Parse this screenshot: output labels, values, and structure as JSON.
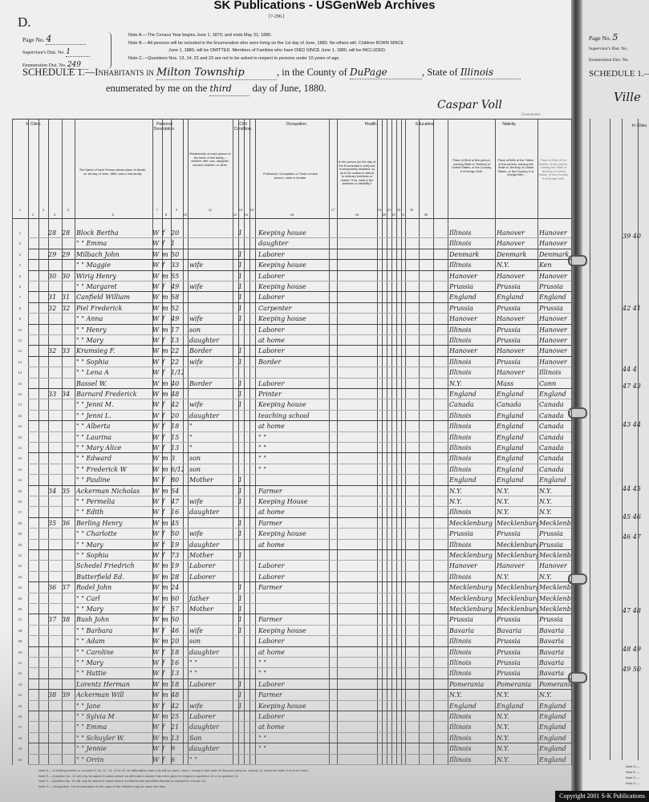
{
  "watermark": "SK Publications - USGenWeb Archives",
  "form_number": "[7-296.]",
  "section_letter": "D.",
  "header": {
    "page_label": "Page No.",
    "page_value": "4",
    "supervisor_label": "Supervisor's Dist. No.",
    "supervisor_value": "1",
    "enumeration_label": "Enumeration Dist. No.",
    "enumeration_value": "249",
    "note_a": "Note A.—The Census Year begins June 1, 1879, and ends May 31, 1880.",
    "note_b1": "Note B.—All persons will be included in the Enumeration who were living on the 1st day of June, 1880. No others will. Children BORN SINCE",
    "note_b2": "June 1, 1880, will be OMITTED. Members of Families who have DIED SINCE June 1, 1880, will be INCLUDED.",
    "note_c": "Note C.—Questions Nos. 13, 14, 22 and 23 are not to be asked in respect to persons under 10 years of age.",
    "schedule_prefix": "SCHEDULE 1.—Inhabitants in",
    "place": "Milton Township",
    "county_label": ", in the County of",
    "county": "DuPage",
    "state_label": ", State of",
    "state": "Illinois",
    "enumerated_label": "enumerated by me on the",
    "day": "third",
    "day_suffix": "day of June, 1880.",
    "enumerator": "Caspar Voll",
    "enumerator_label": "Enumerator."
  },
  "column_groups": {
    "in_cities": "In Cities.",
    "personal": "Personal Description.",
    "civil": "Civil Condition.",
    "occupation": "Occupation.",
    "health": "Health.",
    "education": "Education.",
    "nativity": "Nativity."
  },
  "column_descriptions": {
    "name": "The Name of each Person whose place of abode, on 1st day of June, 1880, was in this family.",
    "relationship": "Relationship of each person to the head of this family—whether wife, son, daughter, servant, boarder, or other.",
    "occupation": "Profession, Occupation or Trade of each person, male or female.",
    "health": "Is the person [on the day of the Enumerator's visit] sick or temporarily disabled, so as to be unable to attend to ordinary business or duties? If so, what is the sickness or disability?",
    "birthplace": "Place of Birth of this person, naming State or Territory of United States, or the Country, if of foreign birth.",
    "father_birthplace": "Place of Birth of the Father of this person, naming the State or Territory of United States, or the Country, if of foreign birth.",
    "mother_birthplace": "Place of Birth of the Mother of this person, naming the State or Territory of United States, or the Country, if of foreign birth."
  },
  "column_numbers": [
    "1",
    "2",
    "3",
    "4",
    "5",
    "6",
    "7",
    "8",
    "9",
    "10",
    "11",
    "12",
    "13",
    "14",
    "15",
    "16",
    "17",
    "18",
    "19",
    "20",
    "21",
    "22",
    "23",
    "24",
    "25",
    "26"
  ],
  "rows": [
    {
      "n": "1",
      "dw": "28",
      "fam": "28",
      "name": "Block Bertha",
      "color": "W",
      "sex": "f",
      "age": "20",
      "rel": "",
      "civ": "1",
      "occ": "Keeping house",
      "bp": "Illinois",
      "fbp": "Hanover",
      "mbp": "Hanover"
    },
    {
      "n": "2",
      "dw": "",
      "fam": "",
      "name": "\" \" Emma",
      "color": "W",
      "sex": "f",
      "age": "1",
      "rel": "",
      "civ": "",
      "occ": "daughter",
      "bp": "Illinois",
      "fbp": "Hanover",
      "mbp": "Hanover"
    },
    {
      "n": "3",
      "dw": "29",
      "fam": "29",
      "name": "Milbach John",
      "color": "W",
      "sex": "m",
      "age": "50",
      "rel": "",
      "civ": "1",
      "occ": "Laborer",
      "bp": "Denmark",
      "fbp": "Denmark",
      "mbp": "Denmark"
    },
    {
      "n": "4",
      "dw": "",
      "fam": "",
      "name": "\" \" Maggie",
      "color": "W",
      "sex": "f",
      "age": "33",
      "rel": "wife",
      "civ": "1",
      "occ": "Keeping house",
      "bp": "Illinois",
      "fbp": "N.Y.",
      "mbp": "Ken"
    },
    {
      "n": "5",
      "dw": "30",
      "fam": "30",
      "name": "Wirig Henry",
      "color": "W",
      "sex": "m",
      "age": "55",
      "rel": "",
      "civ": "1",
      "occ": "Laborer",
      "bp": "Hanover",
      "fbp": "Hanover",
      "mbp": "Hanover"
    },
    {
      "n": "6",
      "dw": "",
      "fam": "",
      "name": "\" \" Margaret",
      "color": "W",
      "sex": "f",
      "age": "49",
      "rel": "wife",
      "civ": "1",
      "occ": "Keeping house",
      "bp": "Prussia",
      "fbp": "Prussia",
      "mbp": "Prussia"
    },
    {
      "n": "7",
      "dw": "31",
      "fam": "31",
      "name": "Canfield William",
      "color": "W",
      "sex": "m",
      "age": "58",
      "rel": "",
      "civ": "1",
      "occ": "Laborer",
      "bp": "England",
      "fbp": "England",
      "mbp": "England"
    },
    {
      "n": "8",
      "dw": "32",
      "fam": "32",
      "name": "Piel Frederick",
      "color": "W",
      "sex": "m",
      "age": "52",
      "rel": "",
      "civ": "1",
      "occ": "Carpenter",
      "bp": "Prussia",
      "fbp": "Prussia",
      "mbp": "Prussia"
    },
    {
      "n": "9",
      "dw": "",
      "fam": "",
      "name": "\" \" Anna",
      "color": "W",
      "sex": "f",
      "age": "49",
      "rel": "wife",
      "civ": "1",
      "occ": "Keeping house",
      "bp": "Hanover",
      "fbp": "Hanover",
      "mbp": "Hanover"
    },
    {
      "n": "10",
      "dw": "",
      "fam": "",
      "name": "\" \" Henry",
      "color": "W",
      "sex": "m",
      "age": "17",
      "rel": "son",
      "civ": "",
      "occ": "Laborer",
      "bp": "Illinois",
      "fbp": "Prussia",
      "mbp": "Hanover"
    },
    {
      "n": "11",
      "dw": "",
      "fam": "",
      "name": "\" \" Mary",
      "color": "W",
      "sex": "f",
      "age": "13",
      "rel": "daughter",
      "civ": "",
      "occ": "at home",
      "bp": "Illinois",
      "fbp": "Prussia",
      "mbp": "Hanover"
    },
    {
      "n": "12",
      "dw": "32",
      "fam": "33",
      "name": "Krumsieg F.",
      "color": "W",
      "sex": "m",
      "age": "22",
      "rel": "Border",
      "civ": "1",
      "occ": "Laborer",
      "bp": "Hanover",
      "fbp": "Hanover",
      "mbp": "Hanover"
    },
    {
      "n": "13",
      "dw": "",
      "fam": "",
      "name": "\" \" Sophia",
      "color": "W",
      "sex": "f",
      "age": "22",
      "rel": "wife",
      "civ": "1",
      "occ": "Border",
      "bp": "Illinois",
      "fbp": "Prussia",
      "mbp": "Hanover"
    },
    {
      "n": "14",
      "dw": "",
      "fam": "",
      "name": "\" \" Lena A",
      "color": "W",
      "sex": "f",
      "age": "1/12",
      "rel": "",
      "civ": "",
      "occ": "",
      "bp": "Illinois",
      "fbp": "Hanover",
      "mbp": "Illinois"
    },
    {
      "n": "15",
      "dw": "",
      "fam": "",
      "name": "Bassel W.",
      "color": "W",
      "sex": "m",
      "age": "40",
      "rel": "Border",
      "civ": "1",
      "occ": "Laborer",
      "bp": "N.Y.",
      "fbp": "Mass",
      "mbp": "Conn"
    },
    {
      "n": "16",
      "dw": "33",
      "fam": "34",
      "name": "Barnard Frederick",
      "color": "W",
      "sex": "m",
      "age": "48",
      "rel": "",
      "civ": "1",
      "occ": "Printer",
      "bp": "England",
      "fbp": "England",
      "mbp": "England"
    },
    {
      "n": "17",
      "dw": "",
      "fam": "",
      "name": "\" \" Jenni M.",
      "color": "W",
      "sex": "f",
      "age": "42",
      "rel": "wife",
      "civ": "1",
      "occ": "Keeping house",
      "bp": "Canada",
      "fbp": "Canada",
      "mbp": "Canada"
    },
    {
      "n": "18",
      "dw": "",
      "fam": "",
      "name": "\" \" Jenni L.",
      "color": "W",
      "sex": "f",
      "age": "20",
      "rel": "daughter",
      "civ": "",
      "occ": "teaching school",
      "bp": "Illinois",
      "fbp": "England",
      "mbp": "Canada"
    },
    {
      "n": "19",
      "dw": "",
      "fam": "",
      "name": "\" \" Alberta",
      "color": "W",
      "sex": "f",
      "age": "18",
      "rel": "\"",
      "civ": "",
      "occ": "at home",
      "bp": "Illinois",
      "fbp": "England",
      "mbp": "Canada"
    },
    {
      "n": "20",
      "dw": "",
      "fam": "",
      "name": "\" \" Laurina",
      "color": "W",
      "sex": "f",
      "age": "15",
      "rel": "\"",
      "civ": "",
      "occ": "\"  \"",
      "bp": "Illinois",
      "fbp": "England",
      "mbp": "Canada"
    },
    {
      "n": "21",
      "dw": "",
      "fam": "",
      "name": "\" \" Mary Alice",
      "color": "W",
      "sex": "f",
      "age": "13",
      "rel": "\"",
      "civ": "",
      "occ": "\"  \"",
      "bp": "Illinois",
      "fbp": "England",
      "mbp": "Canada"
    },
    {
      "n": "22",
      "dw": "",
      "fam": "",
      "name": "\" \" Edward",
      "color": "W",
      "sex": "m",
      "age": "3",
      "rel": "son",
      "civ": "",
      "occ": "\"  \"",
      "bp": "Illinois",
      "fbp": "England",
      "mbp": "Canada"
    },
    {
      "n": "23",
      "dw": "",
      "fam": "",
      "name": "\" \" Frederick W",
      "color": "W",
      "sex": "m",
      "age": "6/12",
      "rel": "son",
      "civ": "",
      "occ": "\"  \"",
      "bp": "Illinois",
      "fbp": "England",
      "mbp": "Canada"
    },
    {
      "n": "24",
      "dw": "",
      "fam": "",
      "name": "\" \" Pauline",
      "color": "W",
      "sex": "f",
      "age": "80",
      "rel": "Mother",
      "civ": "1",
      "occ": "",
      "bp": "England",
      "fbp": "England",
      "mbp": "England"
    },
    {
      "n": "25",
      "dw": "34",
      "fam": "35",
      "name": "Ackerman Nicholas",
      "color": "W",
      "sex": "m",
      "age": "54",
      "rel": "",
      "civ": "1",
      "occ": "Farmer",
      "bp": "N.Y.",
      "fbp": "N.Y.",
      "mbp": "N.Y."
    },
    {
      "n": "26",
      "dw": "",
      "fam": "",
      "name": "\" \" Permelia",
      "color": "W",
      "sex": "f",
      "age": "47",
      "rel": "wife",
      "civ": "1",
      "occ": "Keeping House",
      "bp": "N.Y.",
      "fbp": "N.Y.",
      "mbp": "N.Y."
    },
    {
      "n": "27",
      "dw": "",
      "fam": "",
      "name": "\" \" Edith",
      "color": "W",
      "sex": "f",
      "age": "16",
      "rel": "daughter",
      "civ": "",
      "occ": "at home",
      "bp": "Illinois",
      "fbp": "N.Y.",
      "mbp": "N.Y."
    },
    {
      "n": "28",
      "dw": "35",
      "fam": "36",
      "name": "Berling Henry",
      "color": "W",
      "sex": "m",
      "age": "45",
      "rel": "",
      "civ": "1",
      "occ": "Farmer",
      "bp": "Mecklenburg",
      "fbp": "Mecklenburg",
      "mbp": "Mecklenburg"
    },
    {
      "n": "29",
      "dw": "",
      "fam": "",
      "name": "\" \" Charlotte",
      "color": "W",
      "sex": "f",
      "age": "50",
      "rel": "wife",
      "civ": "1",
      "occ": "Keeping house",
      "bp": "Prussia",
      "fbp": "Prussia",
      "mbp": "Prussia"
    },
    {
      "n": "30",
      "dw": "",
      "fam": "",
      "name": "\" \" Mary",
      "color": "W",
      "sex": "f",
      "age": "19",
      "rel": "daughter",
      "civ": "",
      "occ": "at home",
      "bp": "Illinois",
      "fbp": "Mecklenburg",
      "mbp": "Prussia"
    },
    {
      "n": "31",
      "dw": "",
      "fam": "",
      "name": "\" \" Sophia",
      "color": "W",
      "sex": "f",
      "age": "73",
      "rel": "Mother",
      "civ": "1",
      "occ": "",
      "bp": "Mecklenburg",
      "fbp": "Mecklenburg",
      "mbp": "Mecklenburg"
    },
    {
      "n": "32",
      "dw": "",
      "fam": "",
      "name": "Schedel Friedrich",
      "color": "W",
      "sex": "m",
      "age": "19",
      "rel": "Laborer",
      "civ": "",
      "occ": "Laborer",
      "bp": "Hanover",
      "fbp": "Hanover",
      "mbp": "Hanover"
    },
    {
      "n": "33",
      "dw": "",
      "fam": "",
      "name": "Butterfield Ed.",
      "color": "W",
      "sex": "m",
      "age": "28",
      "rel": "Laborer",
      "civ": "",
      "occ": "Laborer",
      "bp": "Illinois",
      "fbp": "N.Y.",
      "mbp": "N.Y."
    },
    {
      "n": "34",
      "dw": "36",
      "fam": "37",
      "name": "Rodel John",
      "color": "W",
      "sex": "m",
      "age": "24",
      "rel": "",
      "civ": "1",
      "occ": "Farmer",
      "bp": "Mecklenburg",
      "fbp": "Mecklenburg",
      "mbp": "Mecklenburg"
    },
    {
      "n": "35",
      "dw": "",
      "fam": "",
      "name": "\" \" Carl",
      "color": "W",
      "sex": "m",
      "age": "60",
      "rel": "father",
      "civ": "1",
      "occ": "",
      "bp": "Mecklenburg",
      "fbp": "Mecklenburg",
      "mbp": "Mecklenburg"
    },
    {
      "n": "36",
      "dw": "",
      "fam": "",
      "name": "\" \" Mary",
      "color": "W",
      "sex": "f",
      "age": "57",
      "rel": "Mother",
      "civ": "1",
      "occ": "",
      "bp": "Mecklenburg",
      "fbp": "Mecklenburg",
      "mbp": "Mecklenburg"
    },
    {
      "n": "37",
      "dw": "37",
      "fam": "38",
      "name": "Bush John",
      "color": "W",
      "sex": "m",
      "age": "50",
      "rel": "",
      "civ": "1",
      "occ": "Farmer",
      "bp": "Prussia",
      "fbp": "Prussia",
      "mbp": "Prussia"
    },
    {
      "n": "38",
      "dw": "",
      "fam": "",
      "name": "\" \" Barbara",
      "color": "W",
      "sex": "f",
      "age": "46",
      "rel": "wife",
      "civ": "1",
      "occ": "Keeping house",
      "bp": "Bavaria",
      "fbp": "Bavaria",
      "mbp": "Bavaria"
    },
    {
      "n": "39",
      "dw": "",
      "fam": "",
      "name": "\" \" Adam",
      "color": "W",
      "sex": "m",
      "age": "20",
      "rel": "son",
      "civ": "",
      "occ": "Laborer",
      "bp": "Illinois",
      "fbp": "Prussia",
      "mbp": "Bavaria"
    },
    {
      "n": "40",
      "dw": "",
      "fam": "",
      "name": "\" \" Caroline",
      "color": "W",
      "sex": "f",
      "age": "18",
      "rel": "daughter",
      "civ": "",
      "occ": "at home",
      "bp": "Illinois",
      "fbp": "Prussia",
      "mbp": "Bavaria"
    },
    {
      "n": "41",
      "dw": "",
      "fam": "",
      "name": "\" \" Mary",
      "color": "W",
      "sex": "f",
      "age": "16",
      "rel": "\"  \"",
      "civ": "",
      "occ": "\"  \"",
      "bp": "Illinois",
      "fbp": "Prussia",
      "mbp": "Bavaria"
    },
    {
      "n": "42",
      "dw": "",
      "fam": "",
      "name": "\" \" Hattie",
      "color": "W",
      "sex": "f",
      "age": "13",
      "rel": "\"  \"",
      "civ": "",
      "occ": "\"  \"",
      "bp": "Illinois",
      "fbp": "Prussia",
      "mbp": "Bavaria"
    },
    {
      "n": "43",
      "dw": "",
      "fam": "",
      "name": "Lorentz Herman",
      "color": "W",
      "sex": "m",
      "age": "18",
      "rel": "Laborer",
      "civ": "1",
      "occ": "Laborer",
      "bp": "Pomerania",
      "fbp": "Pomerania",
      "mbp": "Pomerania"
    },
    {
      "n": "44",
      "dw": "38",
      "fam": "39",
      "name": "Ackerman Will",
      "color": "W",
      "sex": "m",
      "age": "48",
      "rel": "",
      "civ": "1",
      "occ": "Farmer",
      "bp": "N.Y.",
      "fbp": "N.Y.",
      "mbp": "N.Y."
    },
    {
      "n": "45",
      "dw": "",
      "fam": "",
      "name": "\" \" Jane",
      "color": "W",
      "sex": "f",
      "age": "42",
      "rel": "wife",
      "civ": "1",
      "occ": "Keeping house",
      "bp": "England",
      "fbp": "England",
      "mbp": "England"
    },
    {
      "n": "46",
      "dw": "",
      "fam": "",
      "name": "\" \" Sylvia M",
      "color": "W",
      "sex": "m",
      "age": "25",
      "rel": "Laborer",
      "civ": "",
      "occ": "Laborer",
      "bp": "Illinois",
      "fbp": "N.Y.",
      "mbp": "England"
    },
    {
      "n": "47",
      "dw": "",
      "fam": "",
      "name": "\" \" Emma",
      "color": "W",
      "sex": "f",
      "age": "21",
      "rel": "daughter",
      "civ": "",
      "occ": "at home",
      "bp": "Illinois",
      "fbp": "N.Y.",
      "mbp": "England"
    },
    {
      "n": "48",
      "dw": "",
      "fam": "",
      "name": "\" \" Schuyler W.",
      "color": "W",
      "sex": "m",
      "age": "13",
      "rel": "Son",
      "civ": "",
      "occ": "\"  \"",
      "bp": "Illinois",
      "fbp": "N.Y.",
      "mbp": "England"
    },
    {
      "n": "49",
      "dw": "",
      "fam": "",
      "name": "\" \" Jennie",
      "color": "W",
      "sex": "f",
      "age": "9",
      "rel": "daughter",
      "civ": "",
      "occ": "\"  \"",
      "bp": "Illinois",
      "fbp": "N.Y.",
      "mbp": "England"
    },
    {
      "n": "50",
      "dw": "",
      "fam": "",
      "name": "\" \" Orrin",
      "color": "W",
      "sex": "f",
      "age": "6",
      "rel": "\"  \"",
      "civ": "",
      "occ": "",
      "bp": "Illinois",
      "fbp": "N.Y.",
      "mbp": "England"
    }
  ],
  "right_page": {
    "page_label": "Page No.",
    "page_value": "5",
    "supervisor_label": "Supervisor's Dist. No.",
    "enumeration_label": "Enumeration Dist. No.",
    "schedule_prefix": "SCHEDULE 1.—",
    "place_partial": "Ville",
    "group": "In Cities.",
    "dwelling_numbers": [
      "39 40",
      "42 41",
      "44 4",
      "47 43",
      "43 44",
      "44 45",
      "45 46",
      "46 47",
      "47 48",
      "48 49",
      "49 50"
    ],
    "notes": [
      "Note D.—",
      "Note E.—",
      "Note F.—",
      "Note G.—"
    ]
  },
  "footnotes": [
    "Note D.—In making entries in columns 9, 10, 11, 12, 16 to 20, an affirmative mark only will be used—thus /, except in the case of divorced persons, column 11, when the letter D is to be used.",
    "Note E.—Question No. 12 will only be asked in cases where an affirmative answer has been given in respect to question 11 or to question 21.",
    "Note F.—Question No. 14 will only be asked in cases where a material and specified disease is reported in column 13.",
    "Note G.—Occupation. The enumerators in the case of the children may be used: the ditto."
  ],
  "copyright": "Copyright 2001 S-K Publications"
}
